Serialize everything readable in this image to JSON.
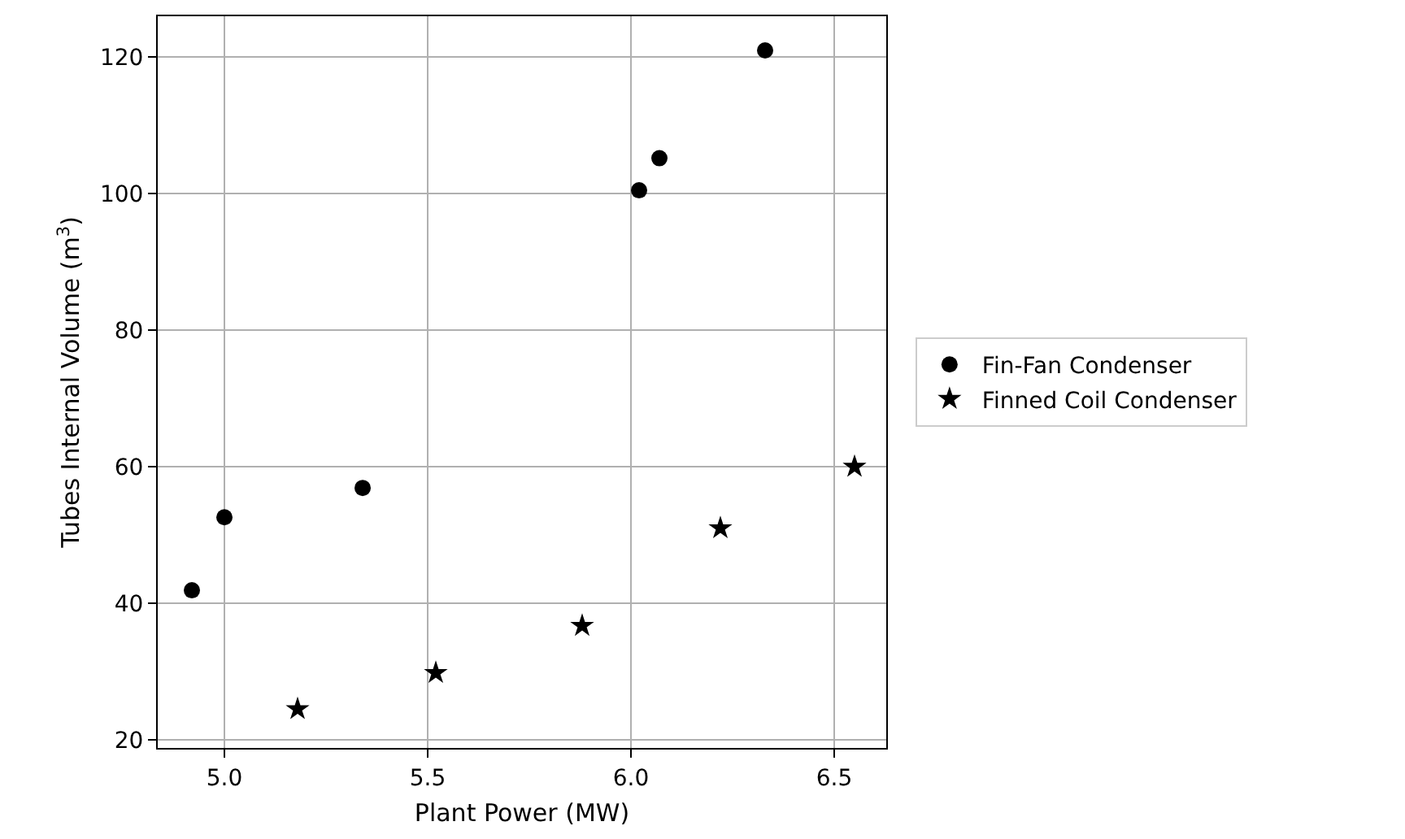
{
  "chart_data": {
    "type": "scatter",
    "xlabel": "Plant Power (MW)",
    "ylabel": "Tubes Internal Volume (m$^{3}$)",
    "xlim": [
      4.836,
      6.628
    ],
    "xticks": [
      {
        "value": 5,
        "label": "5.0"
      },
      {
        "value": 5.5,
        "label": "5.5"
      },
      {
        "value": 6,
        "label": "6.0"
      },
      {
        "value": 6.5,
        "label": "6.5"
      }
    ],
    "ylim": [
      18.8,
      126
    ],
    "yticks": [
      20,
      40,
      60,
      80,
      100,
      120
    ],
    "grid": true,
    "legend": "right",
    "series": [
      {
        "name": "Fin-Fan Condenser",
        "color": "#000000",
        "marker": "circle",
        "x": [
          4.92,
          5.0,
          5.34,
          6.02,
          6.07,
          6.33
        ],
        "values": [
          41.9,
          52.6,
          56.9,
          100.5,
          105.2,
          121
        ]
      },
      {
        "name": "Finned Coil Condenser",
        "color": "#000000",
        "marker": "star",
        "x": [
          5.18,
          5.52,
          5.88,
          6.22,
          6.55
        ],
        "values": [
          24.5,
          29.8,
          36.7,
          51,
          60
        ]
      }
    ]
  }
}
